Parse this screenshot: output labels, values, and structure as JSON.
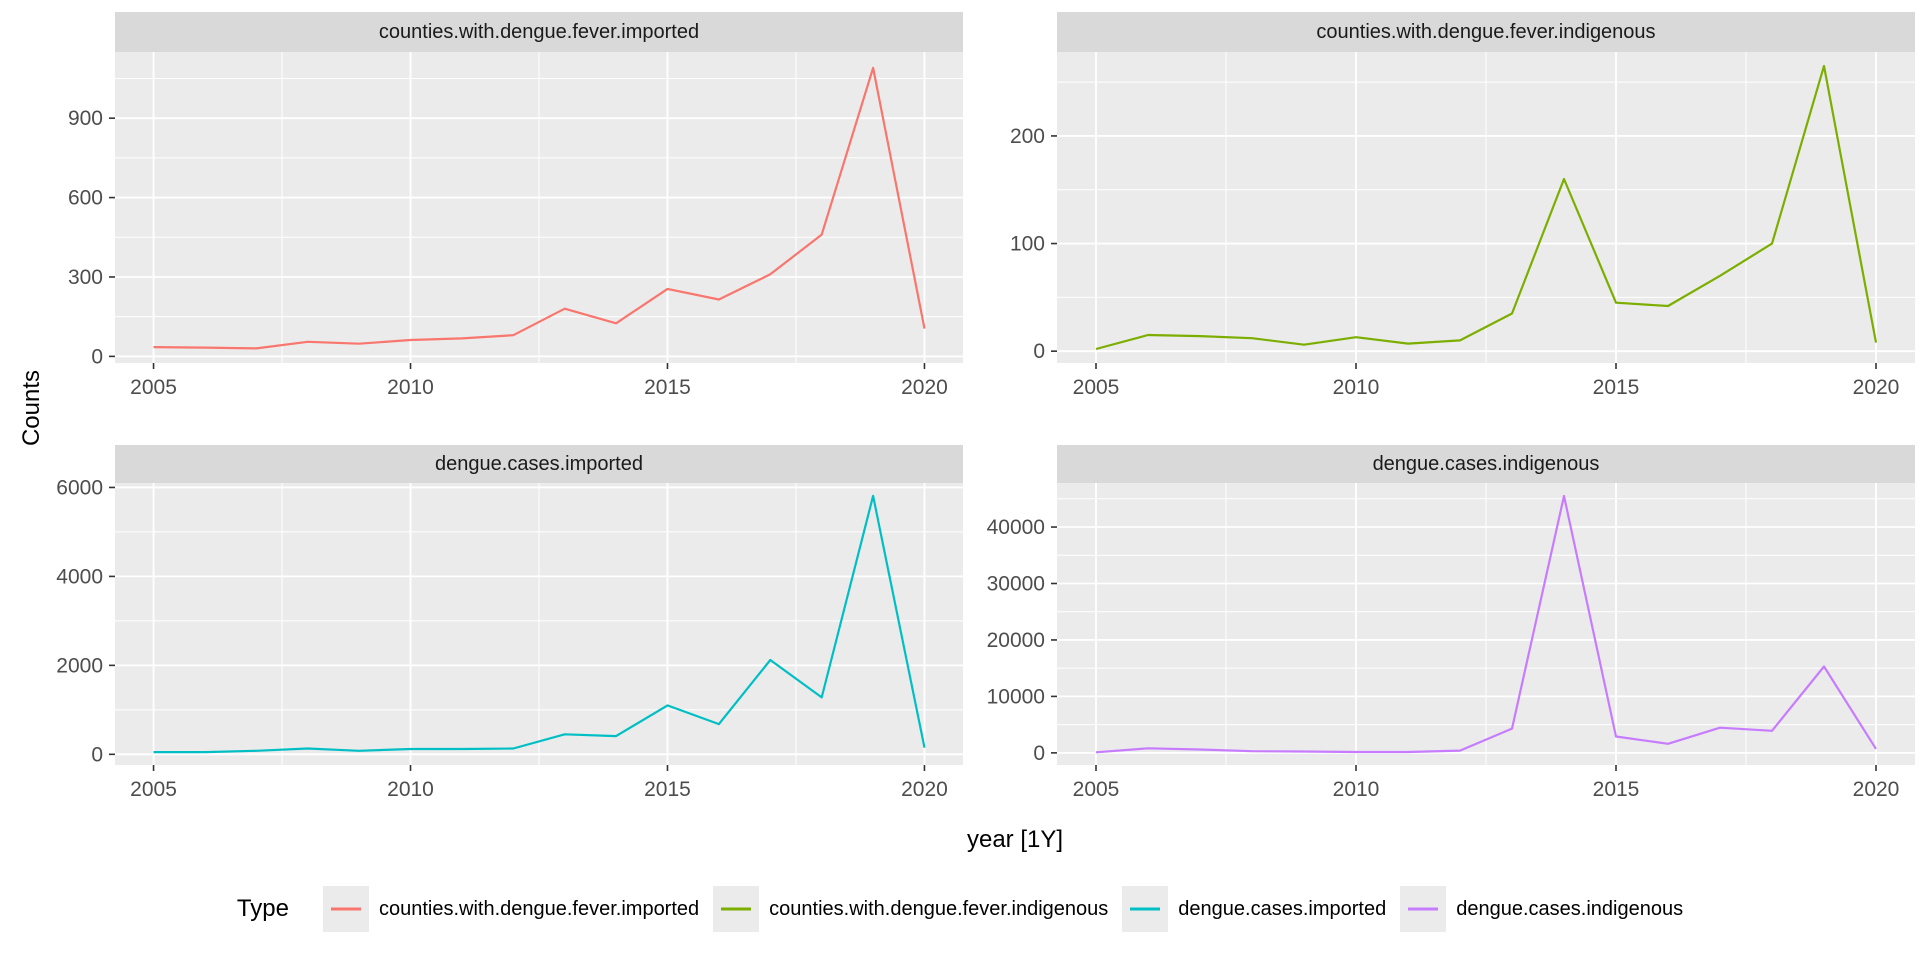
{
  "figure": {
    "y_axis_title": "Counts",
    "x_axis_title": "year [1Y]",
    "background": "#FFFFFF",
    "panel_background": "#EBEBEB",
    "strip_background": "#D9D9D9",
    "grid_color": "#FFFFFF",
    "tick_label_color": "#4D4D4D",
    "tick_mark_color": "#333333",
    "strip_text_color": "#1A1A1A",
    "axis_title_color": "#000000"
  },
  "chart_data": [
    {
      "type": "line",
      "title": "counties.with.dengue.fever.imported",
      "series_name": "counties.with.dengue.fever.imported",
      "color": "#F8766D",
      "x": [
        2005,
        2006,
        2007,
        2008,
        2009,
        2010,
        2011,
        2012,
        2013,
        2014,
        2015,
        2016,
        2017,
        2018,
        2019,
        2020
      ],
      "values": [
        35,
        33,
        30,
        55,
        48,
        62,
        68,
        80,
        180,
        125,
        255,
        215,
        310,
        460,
        1090,
        105
      ],
      "xlim": [
        2004.25,
        2020.75
      ],
      "ylim": [
        -25,
        1150
      ],
      "xticks": [
        2005,
        2010,
        2015,
        2020
      ],
      "xminor": [
        2007.5,
        2012.5,
        2017.5
      ],
      "yticks": [
        0,
        300,
        600,
        900
      ],
      "yminor": [
        150,
        450,
        750,
        1050
      ],
      "xlabel": "year [1Y]",
      "ylabel": "Counts",
      "grid": true,
      "legend_position": "bottom"
    },
    {
      "type": "line",
      "title": "counties.with.dengue.fever.indigenous",
      "series_name": "counties.with.dengue.fever.indigenous",
      "color": "#7CAE00",
      "x": [
        2005,
        2006,
        2007,
        2008,
        2009,
        2010,
        2011,
        2012,
        2013,
        2014,
        2015,
        2016,
        2017,
        2018,
        2019,
        2020
      ],
      "values": [
        2,
        15,
        14,
        12,
        6,
        13,
        7,
        10,
        35,
        160,
        45,
        42,
        70,
        100,
        265,
        8
      ],
      "xlim": [
        2004.25,
        2020.75
      ],
      "ylim": [
        -11,
        278
      ],
      "xticks": [
        2005,
        2010,
        2015,
        2020
      ],
      "xminor": [
        2007.5,
        2012.5,
        2017.5
      ],
      "yticks": [
        0,
        100,
        200
      ],
      "yminor": [
        50,
        150,
        250
      ],
      "xlabel": "year [1Y]",
      "ylabel": "Counts",
      "grid": true,
      "legend_position": "bottom"
    },
    {
      "type": "line",
      "title": "dengue.cases.imported",
      "series_name": "dengue.cases.imported",
      "color": "#00BFC4",
      "x": [
        2005,
        2006,
        2007,
        2008,
        2009,
        2010,
        2011,
        2012,
        2013,
        2014,
        2015,
        2016,
        2017,
        2018,
        2019,
        2020
      ],
      "values": [
        50,
        50,
        80,
        130,
        80,
        120,
        120,
        130,
        450,
        410,
        1100,
        680,
        2120,
        1280,
        5810,
        150
      ],
      "xlim": [
        2004.25,
        2020.75
      ],
      "ylim": [
        -240,
        6100
      ],
      "xticks": [
        2005,
        2010,
        2015,
        2020
      ],
      "xminor": [
        2007.5,
        2012.5,
        2017.5
      ],
      "yticks": [
        0,
        2000,
        4000,
        6000
      ],
      "yminor": [
        1000,
        3000,
        5000
      ],
      "xlabel": "year [1Y]",
      "ylabel": "Counts",
      "grid": true,
      "legend_position": "bottom"
    },
    {
      "type": "line",
      "title": "dengue.cases.indigenous",
      "series_name": "dengue.cases.indigenous",
      "color": "#C77CFF",
      "x": [
        2005,
        2006,
        2007,
        2008,
        2009,
        2010,
        2011,
        2012,
        2013,
        2014,
        2015,
        2016,
        2017,
        2018,
        2019,
        2020
      ],
      "values": [
        100,
        800,
        600,
        300,
        250,
        150,
        150,
        400,
        4300,
        45500,
        2900,
        1600,
        4450,
        3900,
        15300,
        700
      ],
      "xlim": [
        2004.25,
        2020.75
      ],
      "ylim": [
        -2150,
        47800
      ],
      "xticks": [
        2005,
        2010,
        2015,
        2020
      ],
      "xminor": [
        2007.5,
        2012.5,
        2017.5
      ],
      "yticks": [
        0,
        10000,
        20000,
        30000,
        40000
      ],
      "yminor": [
        5000,
        15000,
        25000,
        35000,
        45000
      ],
      "xlabel": "year [1Y]",
      "ylabel": "Counts",
      "grid": true,
      "legend_position": "bottom"
    }
  ],
  "legend": {
    "title": "Type",
    "key_background": "#EBEBEB",
    "entries": [
      {
        "label": "counties.with.dengue.fever.imported",
        "color": "#F8766D"
      },
      {
        "label": "counties.with.dengue.fever.indigenous",
        "color": "#7CAE00"
      },
      {
        "label": "dengue.cases.imported",
        "color": "#00BFC4"
      },
      {
        "label": "dengue.cases.indigenous",
        "color": "#C77CFF"
      }
    ]
  }
}
